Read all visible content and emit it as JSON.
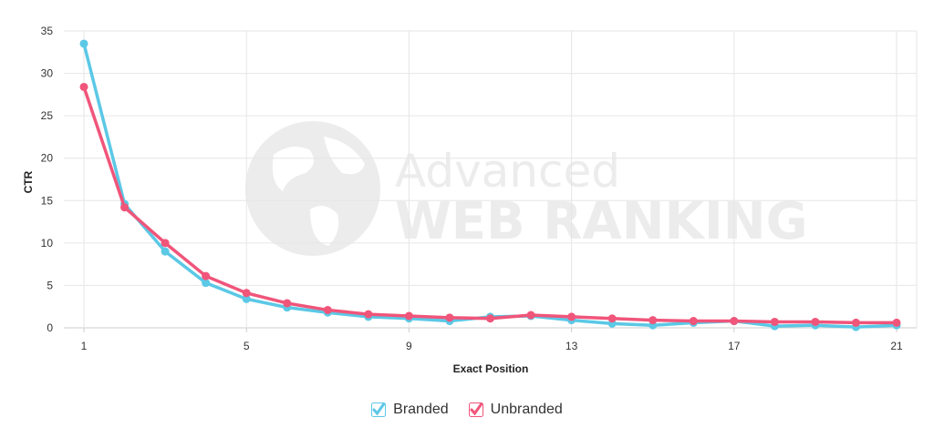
{
  "chart_data": {
    "type": "line",
    "title": "",
    "xlabel": "Exact Position",
    "ylabel": "CTR",
    "x": [
      1,
      2,
      3,
      4,
      5,
      6,
      7,
      8,
      9,
      10,
      11,
      12,
      13,
      14,
      15,
      16,
      17,
      18,
      19,
      20,
      21
    ],
    "xticks": [
      1,
      5,
      9,
      13,
      17,
      21
    ],
    "yticks": [
      0,
      5,
      10,
      15,
      20,
      25,
      30,
      35
    ],
    "xlim": [
      1,
      21
    ],
    "ylim": [
      0,
      35
    ],
    "grid": true,
    "legend_position": "bottom-center",
    "series": [
      {
        "name": "Branded",
        "color": "#5bc8e6",
        "values": [
          33.5,
          14.6,
          9.0,
          5.3,
          3.4,
          2.4,
          1.8,
          1.3,
          1.1,
          0.8,
          1.3,
          1.4,
          0.9,
          0.5,
          0.3,
          0.6,
          0.8,
          0.2,
          0.3,
          0.1,
          0.3
        ]
      },
      {
        "name": "Unbranded",
        "color": "#f0557a",
        "values": [
          28.4,
          14.2,
          10.0,
          6.1,
          4.1,
          2.9,
          2.1,
          1.6,
          1.4,
          1.2,
          1.1,
          1.5,
          1.3,
          1.1,
          0.9,
          0.8,
          0.8,
          0.7,
          0.7,
          0.6,
          0.6
        ]
      }
    ]
  },
  "watermark": {
    "line1": "Advanced",
    "line2": "WEB RANKING",
    "icon": "globe-icon"
  }
}
